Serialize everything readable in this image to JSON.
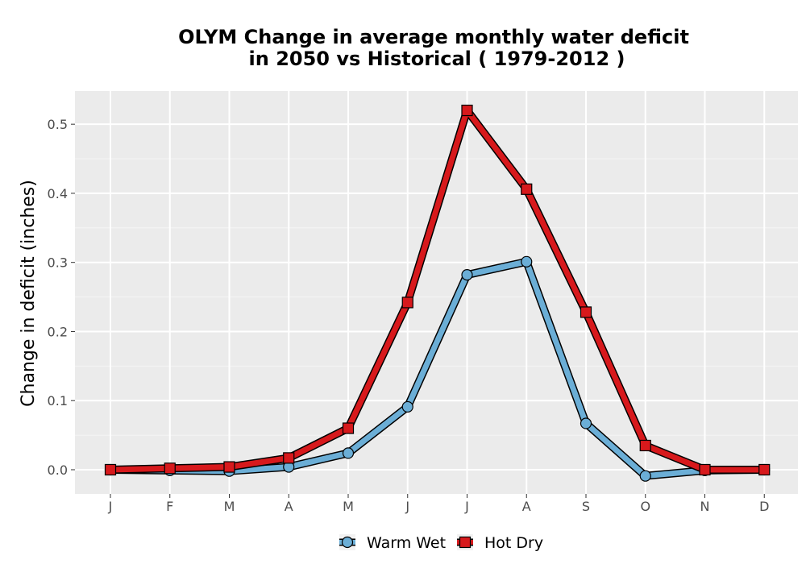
{
  "chart_data": {
    "type": "line",
    "title_line1": "OLYM  Change in average monthly water deficit",
    "title_line2": "in 2050 vs Historical ( 1979-2012 )",
    "xlabel": "",
    "ylabel": "Change in deficit (inches)",
    "categories": [
      "J",
      "F",
      "M",
      "A",
      "M",
      "J",
      "J",
      "A",
      "S",
      "O",
      "N",
      "D"
    ],
    "ylim": [
      -0.035,
      0.548
    ],
    "yticks": [
      0.0,
      0.1,
      0.2,
      0.3,
      0.4,
      0.5
    ],
    "ytick_labels": [
      "0.0",
      "0.1",
      "0.2",
      "0.3",
      "0.4",
      "0.5"
    ],
    "grid": true,
    "legend_position": "bottom",
    "series": [
      {
        "name": "Warm Wet",
        "color": "#6baed6",
        "marker": "circle",
        "values": [
          0.0,
          -0.001,
          -0.002,
          0.004,
          0.024,
          0.091,
          0.282,
          0.301,
          0.067,
          -0.009,
          -0.001,
          0.0
        ]
      },
      {
        "name": "Hot Dry",
        "color": "#d7191c",
        "marker": "square",
        "values": [
          0.0,
          0.002,
          0.004,
          0.017,
          0.06,
          0.242,
          0.52,
          0.406,
          0.228,
          0.035,
          0.0,
          0.0
        ]
      }
    ]
  }
}
